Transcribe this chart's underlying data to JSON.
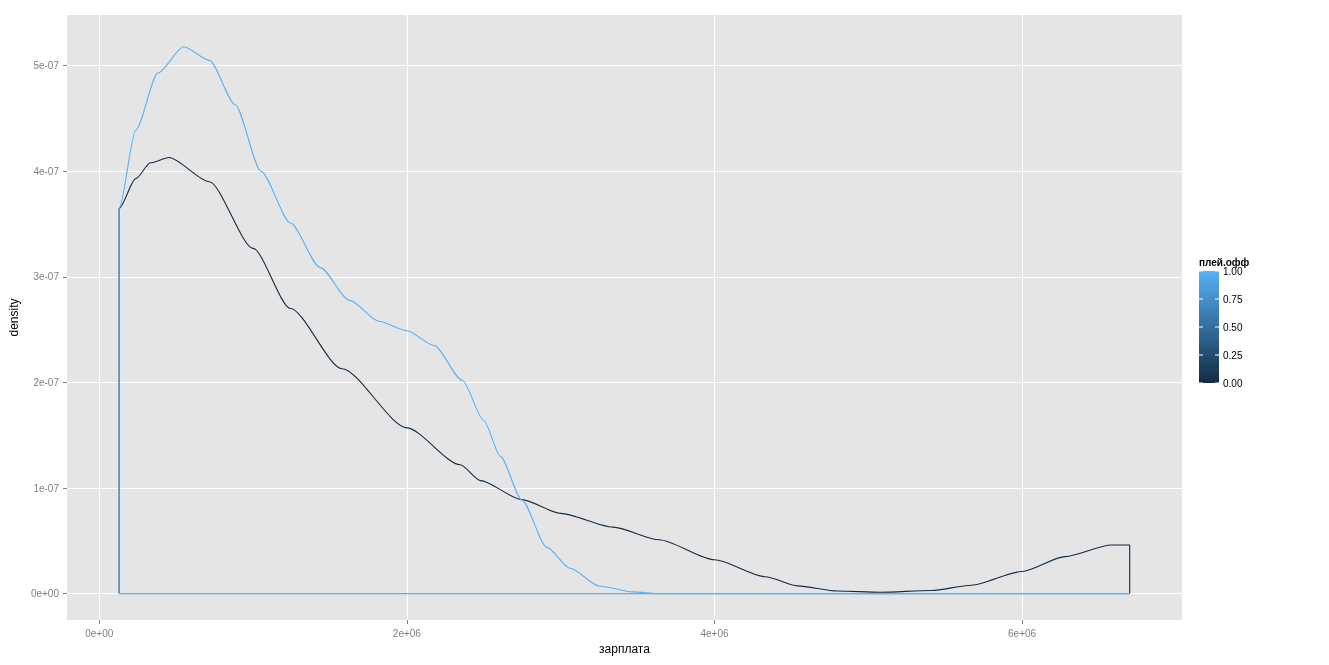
{
  "chart_data": {
    "type": "line",
    "xlabel": "зарплата",
    "ylabel": "density",
    "series": [
      {
        "color": "#132b43",
        "x": [
          129000,
          129000,
          237000,
          333000,
          453000,
          716000,
          1000000,
          1243000,
          1578000,
          2000000,
          2347000,
          2478000,
          2748000,
          3000000,
          3340000,
          3640000,
          4000000,
          4330000,
          4540000,
          4800000,
          5080000,
          5410000,
          5670000,
          6000000,
          6280000,
          6580000,
          6700000,
          6700000
        ],
        "values": [
          0,
          3.65e-07,
          3.93e-07,
          4.08e-07,
          4.13e-07,
          3.9e-07,
          3.27e-07,
          2.7e-07,
          2.13e-07,
          1.57e-07,
          1.22e-07,
          1.07e-07,
          8.9e-08,
          7.6e-08,
          6.3e-08,
          5.1e-08,
          3.2e-08,
          1.6e-08,
          7.3e-09,
          2.5e-09,
          1.3e-09,
          3e-09,
          7.9e-09,
          2.1e-08,
          3.5e-08,
          4.6e-08,
          4.6e-08,
          0
        ]
      },
      {
        "color": "#56b1f7",
        "x": [
          129000,
          129000,
          237000,
          381000,
          549000,
          716000,
          884000,
          1051000,
          1243000,
          1435000,
          1626000,
          1818000,
          2000000,
          2177000,
          2360000,
          2500000,
          2608000,
          2748000,
          2909000,
          3060000,
          3254000,
          3470000,
          3640000,
          6700000
        ],
        "values": [
          0,
          3.65e-07,
          4.39e-07,
          4.93e-07,
          5.18e-07,
          5.05e-07,
          4.63e-07,
          4e-07,
          3.51e-07,
          3.09e-07,
          2.78e-07,
          2.58e-07,
          2.49e-07,
          2.35e-07,
          2.02e-07,
          1.64e-07,
          1.3e-07,
          8.85e-08,
          4.4e-08,
          2.4e-08,
          7e-09,
          1.6e-09,
          0,
          0
        ]
      },
      {
        "color": "#56b1f7",
        "x": [
          129000,
          6700000
        ],
        "values": [
          0,
          0
        ]
      }
    ],
    "xlim": [
      -210000,
      7040000
    ],
    "xticks": [
      {
        "value": 0,
        "label": "0e+00"
      },
      {
        "value": 2000000,
        "label": "2e+06"
      },
      {
        "value": 4000000,
        "label": "4e+06"
      },
      {
        "value": 6000000,
        "label": "6e+06"
      }
    ],
    "ylim": [
      -2.5e-08,
      5.48e-07
    ],
    "yticks": [
      {
        "value": 0,
        "label": "0e+00"
      },
      {
        "value": 1e-07,
        "label": "1e-07"
      },
      {
        "value": 2e-07,
        "label": "2e-07"
      },
      {
        "value": 3e-07,
        "label": "3e-07"
      },
      {
        "value": 4e-07,
        "label": "4e-07"
      },
      {
        "value": 5e-07,
        "label": "5e-07"
      }
    ],
    "grid": true,
    "clabel": "плей.офф",
    "clim": [
      0,
      1
    ],
    "cticks": [
      {
        "value": 0,
        "label": "0.00"
      },
      {
        "value": 0.25,
        "label": "0.25"
      },
      {
        "value": 0.5,
        "label": "0.50"
      },
      {
        "value": 0.75,
        "label": "0.75"
      },
      {
        "value": 1,
        "label": "1.00"
      }
    ]
  }
}
